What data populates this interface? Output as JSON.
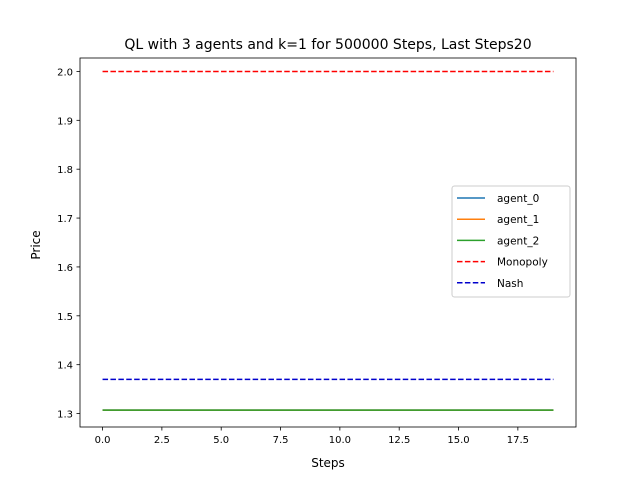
{
  "chart_data": {
    "type": "line",
    "title": "QL with 3 agents and k=1 for 500000 Steps, Last Steps20",
    "xlabel": "Steps",
    "ylabel": "Price",
    "xlim": [
      -0.95,
      19.95
    ],
    "ylim": [
      1.2725,
      2.0275
    ],
    "xticks": [
      0.0,
      2.5,
      5.0,
      7.5,
      10.0,
      12.5,
      15.0,
      17.5
    ],
    "xtick_labels": [
      "0.0",
      "2.5",
      "5.0",
      "7.5",
      "10.0",
      "12.5",
      "15.0",
      "17.5"
    ],
    "yticks": [
      1.3,
      1.4,
      1.5,
      1.6,
      1.7,
      1.8,
      1.9,
      2.0
    ],
    "ytick_labels": [
      "1.3",
      "1.4",
      "1.5",
      "1.6",
      "1.7",
      "1.8",
      "1.9",
      "2.0"
    ],
    "grid": false,
    "legend_position": "center-right",
    "x": [
      0,
      1,
      2,
      3,
      4,
      5,
      6,
      7,
      8,
      9,
      10,
      11,
      12,
      13,
      14,
      15,
      16,
      17,
      18,
      19
    ],
    "series": [
      {
        "name": "agent_0",
        "color": "#1f77b4",
        "style": "solid",
        "values": [
          1.307,
          1.307,
          1.307,
          1.307,
          1.307,
          1.307,
          1.307,
          1.307,
          1.307,
          1.307,
          1.307,
          1.307,
          1.307,
          1.307,
          1.307,
          1.307,
          1.307,
          1.307,
          1.307,
          1.307
        ]
      },
      {
        "name": "agent_1",
        "color": "#ff7f0e",
        "style": "solid",
        "values": [
          1.307,
          1.307,
          1.307,
          1.307,
          1.307,
          1.307,
          1.307,
          1.307,
          1.307,
          1.307,
          1.307,
          1.307,
          1.307,
          1.307,
          1.307,
          1.307,
          1.307,
          1.307,
          1.307,
          1.307
        ]
      },
      {
        "name": "agent_2",
        "color": "#2ca02c",
        "style": "solid",
        "values": [
          1.307,
          1.307,
          1.307,
          1.307,
          1.307,
          1.307,
          1.307,
          1.307,
          1.307,
          1.307,
          1.307,
          1.307,
          1.307,
          1.307,
          1.307,
          1.307,
          1.307,
          1.307,
          1.307,
          1.307
        ]
      },
      {
        "name": "Monopoly",
        "color": "#ff0000",
        "style": "dashed",
        "values": [
          2.0,
          2.0,
          2.0,
          2.0,
          2.0,
          2.0,
          2.0,
          2.0,
          2.0,
          2.0,
          2.0,
          2.0,
          2.0,
          2.0,
          2.0,
          2.0,
          2.0,
          2.0,
          2.0,
          2.0
        ]
      },
      {
        "name": "Nash",
        "color": "#0000cc",
        "style": "dashed",
        "values": [
          1.37,
          1.37,
          1.37,
          1.37,
          1.37,
          1.37,
          1.37,
          1.37,
          1.37,
          1.37,
          1.37,
          1.37,
          1.37,
          1.37,
          1.37,
          1.37,
          1.37,
          1.37,
          1.37,
          1.37
        ]
      }
    ]
  }
}
